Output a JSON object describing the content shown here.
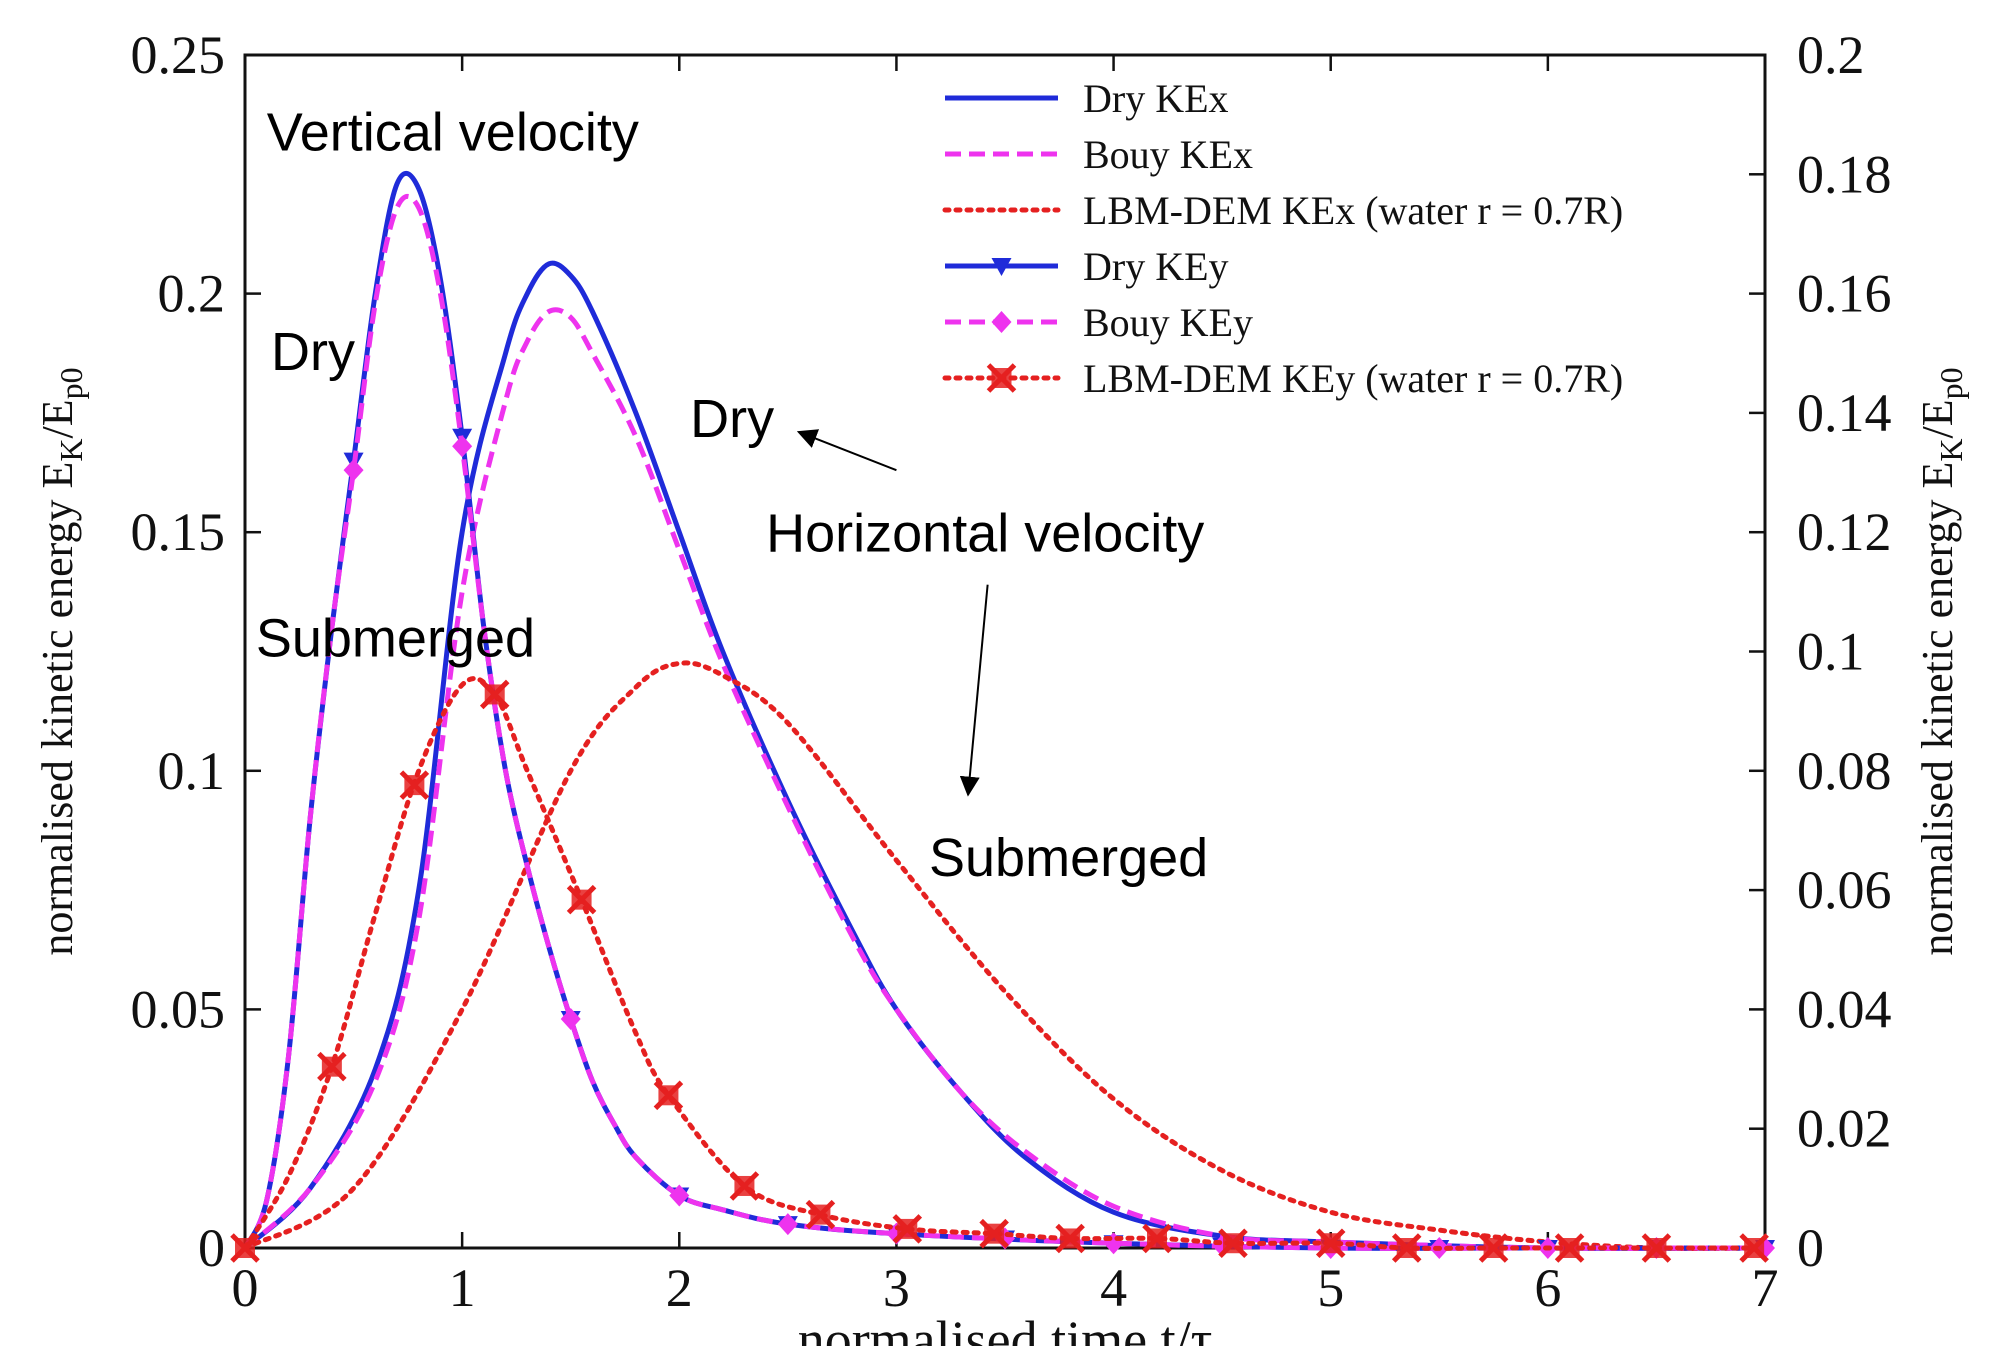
{
  "chart_data": {
    "type": "line",
    "xlabel": "normalised time t/τ",
    "ylabel_left": "normalised kinetic energy E",
    "ylabel_left_sub": "K",
    "ylabel_left_mid": "/E",
    "ylabel_left_sub2": "p0",
    "ylabel_right": "normalised kinetic energy E",
    "ylabel_right_sub": "K",
    "ylabel_right_mid": "/E",
    "ylabel_right_sub2": "p0",
    "xlim": [
      0,
      7
    ],
    "ylim_left": [
      0,
      0.25
    ],
    "ylim_right": [
      0,
      0.2
    ],
    "x_ticks": [
      "0",
      "1",
      "2",
      "3",
      "4",
      "5",
      "6",
      "7"
    ],
    "y_left_ticks": [
      "0",
      "0.05",
      "0.1",
      "0.15",
      "0.2",
      "0.25"
    ],
    "y_right_ticks": [
      "0",
      "0.02",
      "0.04",
      "0.06",
      "0.08",
      "0.1",
      "0.12",
      "0.14",
      "0.16",
      "0.18",
      "0.2"
    ],
    "legend_position": "top-right",
    "colors": {
      "blue": "#1f2bd9",
      "magenta": "#ee33ee",
      "red": "#e52020"
    },
    "series": [
      {
        "name": "Dry KEx",
        "axis": "right",
        "color": "#1f2bd9",
        "style": "solid",
        "marker": "none",
        "x": [
          0,
          0.3,
          0.6,
          0.8,
          1.0,
          1.2,
          1.3,
          1.4,
          1.5,
          1.6,
          1.8,
          2.0,
          2.2,
          2.5,
          2.8,
          3.0,
          3.3,
          3.6,
          4.0,
          4.5,
          5.0,
          6.0,
          7.0
        ],
        "y": [
          0,
          0.01,
          0.03,
          0.06,
          0.12,
          0.15,
          0.16,
          0.165,
          0.163,
          0.157,
          0.14,
          0.12,
          0.1,
          0.075,
          0.053,
          0.04,
          0.026,
          0.015,
          0.006,
          0.002,
          0.001,
          0.0,
          0.0
        ]
      },
      {
        "name": "Bouy KEx",
        "axis": "right",
        "color": "#ee33ee",
        "style": "dashed",
        "marker": "none",
        "x": [
          0,
          0.3,
          0.6,
          0.8,
          1.0,
          1.2,
          1.3,
          1.4,
          1.5,
          1.6,
          1.8,
          2.0,
          2.2,
          2.5,
          2.8,
          3.0,
          3.3,
          3.6,
          4.0,
          4.5,
          5.0,
          6.0,
          7.0
        ],
        "y": [
          0,
          0.01,
          0.028,
          0.055,
          0.11,
          0.142,
          0.152,
          0.157,
          0.156,
          0.15,
          0.136,
          0.117,
          0.098,
          0.074,
          0.052,
          0.04,
          0.026,
          0.016,
          0.007,
          0.002,
          0.001,
          0.0,
          0.0
        ]
      },
      {
        "name": "LBM-DEM KEx (water r = 0.7R)",
        "axis": "right",
        "color": "#e52020",
        "style": "dotted",
        "marker": "none",
        "x": [
          0,
          0.5,
          1.0,
          1.5,
          1.8,
          2.0,
          2.2,
          2.5,
          3.0,
          3.5,
          4.0,
          4.5,
          5.0,
          5.5,
          6.0,
          6.5,
          7.0
        ],
        "y": [
          0,
          0.01,
          0.04,
          0.08,
          0.094,
          0.098,
          0.096,
          0.088,
          0.065,
          0.043,
          0.025,
          0.013,
          0.006,
          0.003,
          0.001,
          0.0,
          0.0
        ]
      },
      {
        "name": "Dry KEy",
        "axis": "left",
        "color": "#1f2bd9",
        "style": "solid",
        "marker": "triangle",
        "x": [
          0,
          0.1,
          0.2,
          0.3,
          0.4,
          0.5,
          0.6,
          0.7,
          0.8,
          0.9,
          1.0,
          1.1,
          1.2,
          1.3,
          1.4,
          1.5,
          1.6,
          1.7,
          1.8,
          2.0,
          2.2,
          2.5,
          3.0,
          4.0,
          5.0,
          6.0,
          7.0
        ],
        "y": [
          0,
          0.01,
          0.04,
          0.09,
          0.13,
          0.165,
          0.2,
          0.223,
          0.222,
          0.203,
          0.17,
          0.13,
          0.1,
          0.08,
          0.063,
          0.048,
          0.035,
          0.026,
          0.019,
          0.011,
          0.008,
          0.005,
          0.003,
          0.001,
          0.0,
          0.0,
          0.0
        ],
        "markers_x": [
          0.5,
          1.0,
          1.5,
          2.0,
          2.5,
          3.0,
          3.5,
          4.0,
          4.5,
          5.0,
          5.5,
          6.0,
          6.5,
          7.0
        ]
      },
      {
        "name": "Bouy KEy",
        "axis": "left",
        "color": "#ee33ee",
        "style": "dashed",
        "marker": "diamond",
        "x": [
          0,
          0.1,
          0.2,
          0.3,
          0.4,
          0.5,
          0.6,
          0.7,
          0.8,
          0.9,
          1.0,
          1.1,
          1.2,
          1.3,
          1.4,
          1.5,
          1.6,
          1.7,
          1.8,
          2.0,
          2.2,
          2.5,
          3.0,
          4.0,
          5.0,
          6.0,
          7.0
        ],
        "y": [
          0,
          0.01,
          0.04,
          0.09,
          0.13,
          0.163,
          0.198,
          0.218,
          0.218,
          0.2,
          0.168,
          0.13,
          0.1,
          0.08,
          0.063,
          0.048,
          0.035,
          0.026,
          0.019,
          0.011,
          0.008,
          0.005,
          0.003,
          0.001,
          0.0,
          0.0,
          0.0
        ],
        "markers_x": [
          0.5,
          1.0,
          1.5,
          2.0,
          2.5,
          3.0,
          3.5,
          4.0,
          4.5,
          5.0,
          5.5,
          6.0,
          6.5,
          7.0
        ]
      },
      {
        "name": "LBM-DEM KEy (water r = 0.7R)",
        "axis": "left",
        "color": "#e52020",
        "style": "dotted",
        "marker": "x-square",
        "x": [
          0,
          0.2,
          0.4,
          0.6,
          0.8,
          1.0,
          1.15,
          1.3,
          1.55,
          1.8,
          1.95,
          2.3,
          2.65,
          3.05,
          3.45,
          3.8,
          4.2,
          4.55,
          5.0,
          5.35,
          5.75,
          6.1,
          6.5,
          6.95
        ],
        "y": [
          0,
          0.015,
          0.038,
          0.07,
          0.1,
          0.118,
          0.116,
          0.1,
          0.073,
          0.045,
          0.032,
          0.013,
          0.007,
          0.004,
          0.003,
          0.002,
          0.002,
          0.001,
          0.001,
          0.0,
          0.0,
          0.0,
          0.0,
          0.0
        ],
        "markers_x": [
          0,
          0.4,
          0.78,
          1.15,
          1.55,
          1.95,
          2.3,
          2.65,
          3.05,
          3.45,
          3.8,
          4.2,
          4.55,
          5.0,
          5.35,
          5.75,
          6.1,
          6.5,
          6.95
        ]
      }
    ],
    "annotations": [
      {
        "text": "Vertical velocity",
        "x": 0.1,
        "y_left": 0.23
      },
      {
        "text": "Dry",
        "x": 0.12,
        "y_left": 0.184
      },
      {
        "text": "Submerged",
        "x": 0.05,
        "y_left": 0.124
      },
      {
        "text": "Dry",
        "x": 2.05,
        "y_left": 0.17
      },
      {
        "text": "Horizontal velocity",
        "x": 2.4,
        "y_left": 0.146
      },
      {
        "text": "Submerged",
        "x": 3.15,
        "y_left": 0.078
      }
    ]
  }
}
